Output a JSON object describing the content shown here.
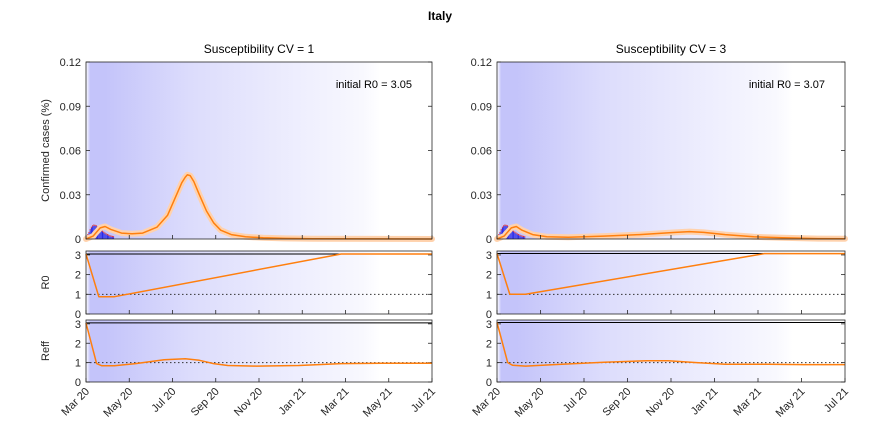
{
  "figure": {
    "title": "Italy"
  },
  "colors": {
    "fit": "#ff7f0e",
    "band": "#ffd2ad",
    "bars": "#1f1fe6",
    "bar_tips": "#e0282c",
    "shade": "#5050f0",
    "black": "#000000"
  },
  "x_ticks": [
    "Mar 20",
    "May 20",
    "Jul 20",
    "Sep 20",
    "Nov 20",
    "Jan 21",
    "Mar 21",
    "May 21",
    "Jul 21"
  ],
  "chart_data": [
    {
      "type": "line",
      "title": "Susceptibility CV = 1",
      "annotation": "initial R0 = 3.05",
      "x_range": [
        "Mar 20",
        "Jul 21"
      ],
      "panels": {
        "cases": {
          "ylabel": "Confirmed cases (%)",
          "ylim": [
            0,
            0.12
          ],
          "yticks": [
            "0",
            "0.03",
            "0.06",
            "0.09",
            "0.12"
          ],
          "fit": [
            [
              0,
              0
            ],
            [
              10,
              0.002
            ],
            [
              20,
              0.0075
            ],
            [
              27,
              0.0085
            ],
            [
              35,
              0.0065
            ],
            [
              50,
              0.004
            ],
            [
              65,
              0.0035
            ],
            [
              80,
              0.004
            ],
            [
              100,
              0.008
            ],
            [
              115,
              0.016
            ],
            [
              125,
              0.027
            ],
            [
              135,
              0.038
            ],
            [
              140,
              0.042
            ],
            [
              143,
              0.0435
            ],
            [
              147,
              0.043
            ],
            [
              152,
              0.039
            ],
            [
              160,
              0.03
            ],
            [
              170,
              0.019
            ],
            [
              180,
              0.011
            ],
            [
              190,
              0.006
            ],
            [
              205,
              0.003
            ],
            [
              225,
              0.0015
            ],
            [
              250,
              0.0008
            ],
            [
              280,
              0.0004
            ],
            [
              320,
              0.0002
            ],
            [
              488,
              0
            ]
          ],
          "reported": [
            0,
            0.0025,
            0.004,
            0.006,
            0.0075,
            0.0085,
            0.009,
            0.0088,
            0.0085,
            0.0078,
            0.007,
            0.0062,
            0.0055,
            0.0048,
            0.0042,
            0.0036,
            0.003,
            0.0026,
            0.0022,
            0.0018,
            0.0015,
            0.0013,
            0.0011
          ]
        },
        "r0": {
          "ylabel": "R0",
          "ylim": [
            0,
            3.2
          ],
          "yticks": [
            "0",
            "1",
            "2",
            "3"
          ],
          "fit": [
            [
              0,
              3.05
            ],
            [
              18,
              0.88
            ],
            [
              40,
              0.88
            ],
            [
              360,
              3.05
            ],
            [
              488,
              3.05
            ]
          ]
        },
        "reff": {
          "ylabel": "Reff",
          "ylim": [
            0,
            3.2
          ],
          "yticks": [
            "0",
            "1",
            "2",
            "3"
          ],
          "fit": [
            [
              0,
              3.05
            ],
            [
              15,
              0.95
            ],
            [
              22,
              0.84
            ],
            [
              40,
              0.84
            ],
            [
              70,
              0.95
            ],
            [
              110,
              1.15
            ],
            [
              140,
              1.2
            ],
            [
              160,
              1.12
            ],
            [
              180,
              0.95
            ],
            [
              200,
              0.85
            ],
            [
              240,
              0.82
            ],
            [
              300,
              0.85
            ],
            [
              360,
              0.95
            ],
            [
              420,
              0.97
            ],
            [
              488,
              0.97
            ]
          ]
        }
      }
    },
    {
      "type": "line",
      "title": "Susceptibility CV = 3",
      "annotation": "initial R0 = 3.07",
      "x_range": [
        "Mar 20",
        "Jul 21"
      ],
      "panels": {
        "cases": {
          "ylabel": "",
          "ylim": [
            0,
            0.12
          ],
          "yticks": [
            "0",
            "0.03",
            "0.06",
            "0.09",
            "0.12"
          ],
          "fit": [
            [
              0,
              0
            ],
            [
              10,
              0.002
            ],
            [
              20,
              0.0075
            ],
            [
              27,
              0.0085
            ],
            [
              35,
              0.006
            ],
            [
              50,
              0.003
            ],
            [
              70,
              0.0015
            ],
            [
              100,
              0.0012
            ],
            [
              150,
              0.002
            ],
            [
              200,
              0.003
            ],
            [
              250,
              0.0045
            ],
            [
              270,
              0.005
            ],
            [
              290,
              0.0045
            ],
            [
              320,
              0.003
            ],
            [
              360,
              0.0015
            ],
            [
              400,
              0.0008
            ],
            [
              450,
              0.0003
            ],
            [
              488,
              0.0002
            ]
          ],
          "reported": [
            0,
            0.0025,
            0.004,
            0.006,
            0.0075,
            0.0085,
            0.009,
            0.0088,
            0.0085,
            0.0078,
            0.007,
            0.0062,
            0.0055,
            0.0048,
            0.0042,
            0.0036,
            0.003,
            0.0026,
            0.0022,
            0.0018,
            0.0015,
            0.0013,
            0.0011
          ]
        },
        "r0": {
          "ylabel": "",
          "ylim": [
            0,
            3.2
          ],
          "yticks": [
            "0",
            "1",
            "2",
            "3"
          ],
          "fit": [
            [
              0,
              3.07
            ],
            [
              18,
              1.0
            ],
            [
              40,
              1.0
            ],
            [
              375,
              3.07
            ],
            [
              488,
              3.07
            ]
          ]
        },
        "reff": {
          "ylabel": "",
          "ylim": [
            0,
            3.2
          ],
          "yticks": [
            "0",
            "1",
            "2",
            "3"
          ],
          "fit": [
            [
              0,
              3.07
            ],
            [
              15,
              1.0
            ],
            [
              22,
              0.86
            ],
            [
              40,
              0.82
            ],
            [
              80,
              0.9
            ],
            [
              150,
              1.02
            ],
            [
              210,
              1.1
            ],
            [
              240,
              1.1
            ],
            [
              280,
              1.0
            ],
            [
              320,
              0.92
            ],
            [
              380,
              0.92
            ],
            [
              430,
              0.9
            ],
            [
              488,
              0.9
            ]
          ]
        }
      }
    }
  ]
}
